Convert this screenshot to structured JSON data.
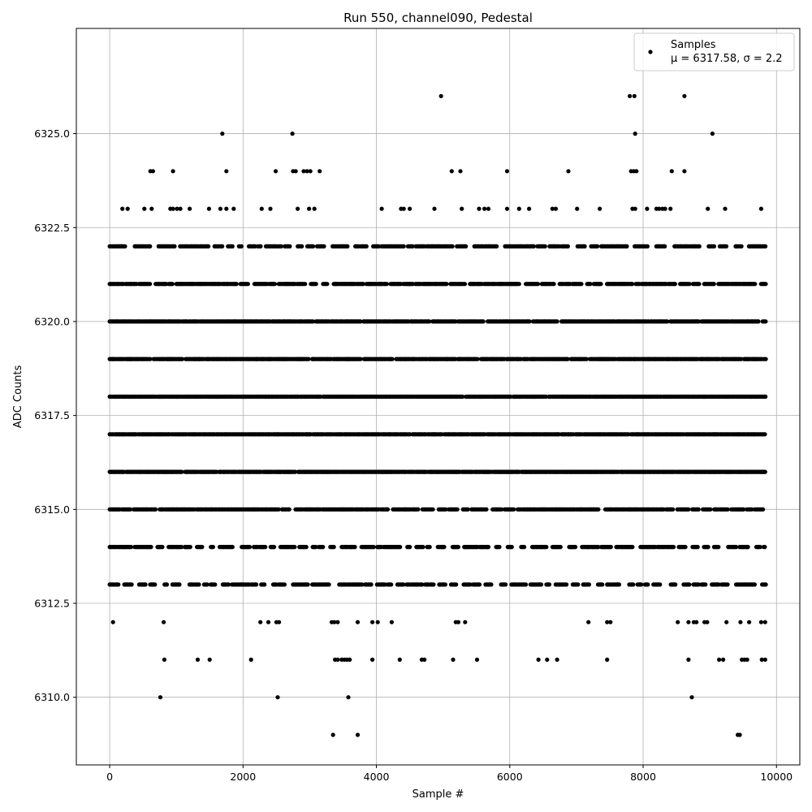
{
  "chart_data": {
    "type": "scatter",
    "title": "Run 550, channel090, Pedestal",
    "xlabel": "Sample #",
    "ylabel": "ADC Counts",
    "xlim": [
      -500,
      10350
    ],
    "ylim": [
      6308.2,
      6327.8
    ],
    "xticks": [
      0,
      2000,
      4000,
      6000,
      8000,
      10000
    ],
    "yticks": [
      6310.0,
      6312.5,
      6315.0,
      6317.5,
      6320.0,
      6322.5,
      6325.0
    ],
    "ytick_labels": [
      "6310.0",
      "6312.5",
      "6315.0",
      "6317.5",
      "6320.0",
      "6322.5",
      "6325.0"
    ],
    "grid": true,
    "legend": {
      "position": "upper-right",
      "entries": [
        {
          "label_line1": "Samples",
          "label_line2": "μ = 6317.58, σ = 2.2"
        }
      ]
    },
    "marker_color": "#000000",
    "series": [
      {
        "name": "Samples",
        "x_range": [
          0,
          9840
        ],
        "dense_levels": [
          6313,
          6314,
          6315,
          6316,
          6317,
          6318,
          6319,
          6320,
          6321,
          6322
        ],
        "sparse_points": {
          "6309": [
            3350,
            3720,
            9420,
            9450
          ],
          "6310": [
            760,
            2520,
            3580,
            8730
          ],
          "6311": [
            820,
            1320,
            1500,
            2120,
            3380,
            3420,
            3480,
            3520,
            3560,
            3600,
            3940,
            4350,
            4680,
            4720,
            5150,
            5510,
            6430,
            6560,
            6710,
            7460,
            8680,
            9140,
            9200,
            9480,
            9520,
            9560,
            9780,
            9830
          ],
          "6312": [
            50,
            810,
            2260,
            2380,
            2500,
            2540,
            3330,
            3370,
            3420,
            3720,
            3940,
            4020,
            4230,
            5190,
            5230,
            5330,
            7180,
            7460,
            7510,
            8520,
            8680,
            8760,
            8800,
            8920,
            8960,
            9250,
            9460,
            9590,
            9770,
            9830
          ],
          "6323": [
            190,
            270,
            520,
            630,
            910,
            950,
            1010,
            1060,
            1200,
            1490,
            1660,
            1750,
            1860,
            2280,
            2410,
            2820,
            2990,
            3070,
            4080,
            4370,
            4410,
            4500,
            4870,
            5280,
            5540,
            5620,
            5680,
            5960,
            6140,
            6290,
            6640,
            6690,
            7010,
            7350,
            7840,
            7880,
            8060,
            8200,
            8240,
            8290,
            8330,
            8410,
            8970,
            9230,
            9770
          ],
          "6324": [
            610,
            650,
            950,
            1750,
            2490,
            2750,
            2790,
            2910,
            2960,
            3010,
            3150,
            5130,
            5260,
            5960,
            6880,
            7820,
            7860,
            7900,
            8430,
            8620
          ],
          "6325": [
            1690,
            2740,
            7880,
            9040
          ],
          "6326": [
            4970,
            7800,
            7870,
            8620
          ]
        },
        "seed": 550
      }
    ]
  }
}
